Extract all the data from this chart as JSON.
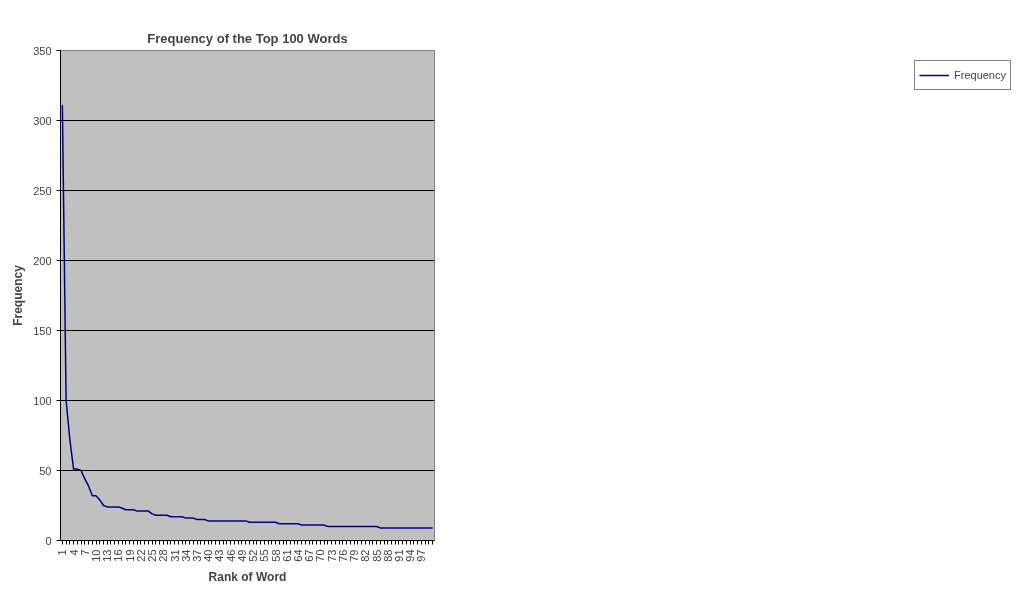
{
  "chart_data": {
    "type": "line",
    "title": "Frequency of the Top 100 Words",
    "xlabel": "Rank of Word",
    "ylabel": "Frequency",
    "categories": [
      "1",
      null,
      null,
      "4",
      null,
      null,
      "7",
      null,
      null,
      "10",
      null,
      null,
      "13",
      null,
      null,
      "16",
      null,
      null,
      "19",
      null,
      null,
      "22",
      null,
      null,
      "25",
      null,
      null,
      "28",
      null,
      null,
      "31",
      null,
      null,
      "34",
      null,
      null,
      "37",
      null,
      null,
      "40",
      null,
      null,
      "43",
      null,
      null,
      "46",
      null,
      null,
      "49",
      null,
      null,
      "52",
      null,
      null,
      "55",
      null,
      null,
      "58",
      null,
      null,
      "61",
      null,
      null,
      "64",
      null,
      null,
      "67",
      null,
      null,
      "70",
      null,
      null,
      "73",
      null,
      null,
      "76",
      null,
      null,
      "79",
      null,
      null,
      "82",
      null,
      null,
      "85",
      null,
      null,
      "88",
      null,
      null,
      "91",
      null,
      null,
      "94",
      null,
      null,
      "97",
      null,
      null,
      null
    ],
    "series": [
      {
        "name": "Frequency",
        "color": "#000080",
        "values": [
          311,
          100,
          72,
          51,
          51,
          50,
          44,
          39,
          32,
          32,
          29,
          25,
          24,
          24,
          24,
          24,
          23,
          22,
          22,
          22,
          21,
          21,
          21,
          21,
          19,
          18,
          18,
          18,
          18,
          17,
          17,
          17,
          17,
          16,
          16,
          16,
          15,
          15,
          15,
          14,
          14,
          14,
          14,
          14,
          14,
          14,
          14,
          14,
          14,
          14,
          13,
          13,
          13,
          13,
          13,
          13,
          13,
          13,
          12,
          12,
          12,
          12,
          12,
          12,
          11,
          11,
          11,
          11,
          11,
          11,
          11,
          10,
          10,
          10,
          10,
          10,
          10,
          10,
          10,
          10,
          10,
          10,
          10,
          10,
          10,
          9,
          9,
          9,
          9,
          9,
          9,
          9,
          9,
          9,
          9,
          9,
          9,
          9,
          9,
          9
        ]
      }
    ],
    "ylim": [
      0,
      350
    ],
    "yticks": [
      0,
      50,
      100,
      150,
      200,
      250,
      300,
      350
    ],
    "grid": "y",
    "legend": "right",
    "line_style": "solid",
    "marker": "none"
  }
}
